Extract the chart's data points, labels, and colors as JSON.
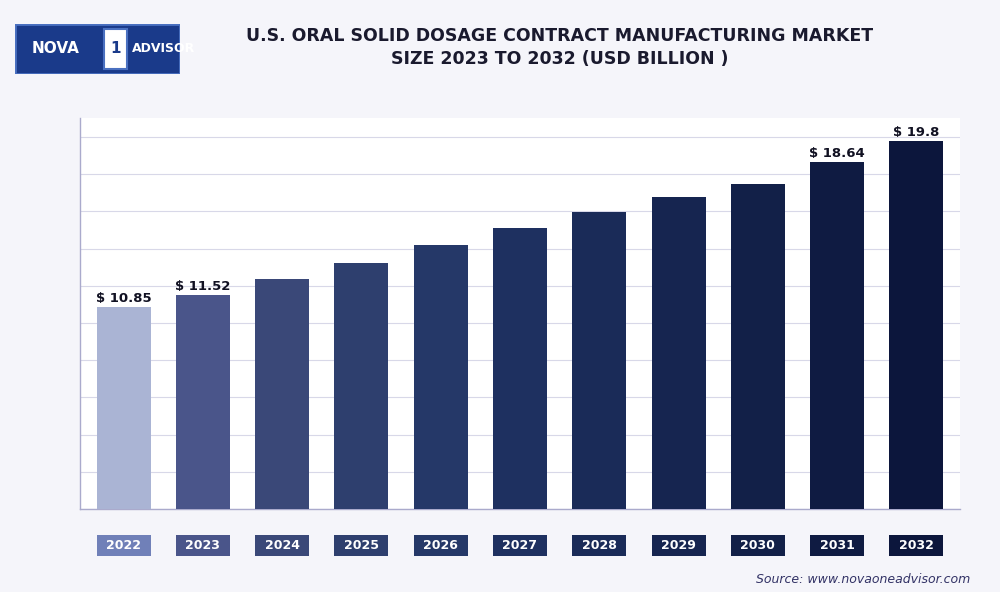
{
  "title": "U.S. ORAL SOLID DOSAGE CONTRACT MANUFACTURING MARKET\nSIZE 2023 TO 2032 (USD BILLION )",
  "categories": [
    "2022",
    "2023",
    "2024",
    "2025",
    "2026",
    "2027",
    "2028",
    "2029",
    "2030",
    "2031",
    "2032"
  ],
  "values": [
    10.85,
    11.52,
    12.35,
    13.25,
    14.2,
    15.1,
    15.95,
    16.75,
    17.5,
    18.64,
    19.8
  ],
  "bar_colors": [
    "#aab4d4",
    "#4a558a",
    "#3a4878",
    "#2e3f6e",
    "#253868",
    "#1e3060",
    "#1a2b58",
    "#162550",
    "#122048",
    "#0f1b42",
    "#0c163c"
  ],
  "xlabel_bg_2022": "#7080b8",
  "xlabel_bg_others": "#1e2d5e",
  "label_values": [
    "$ 10.85",
    "$ 11.52",
    "",
    "",
    "",
    "",
    "",
    "",
    "",
    "$ 18.64",
    "$ 19.8"
  ],
  "ylim": [
    0,
    21
  ],
  "source_text": "Source: www.novaoneadvisor.com",
  "bg_color": "#f5f5fa",
  "plot_bg_color": "#ffffff",
  "title_color": "#1a1a2e",
  "grid_color": "#d8d8e8",
  "logo_bg": "#1a3a8a",
  "logo_border": "#4a70c0"
}
